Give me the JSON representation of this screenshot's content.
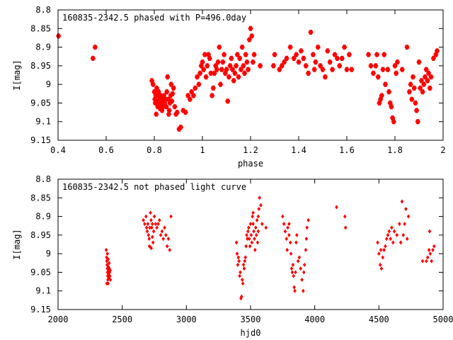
{
  "colors": {
    "marker": "#ff0000",
    "axis": "#000000",
    "background": "#ffffff"
  },
  "chart_data": [
    {
      "type": "scatter",
      "title": "160835-2342.5 phased with P=496.0day",
      "xlabel": "phase",
      "ylabel": "I[mag]",
      "xlim": [
        0.4,
        2.0
      ],
      "ylim": [
        8.8,
        9.15
      ],
      "y_inverted": true,
      "grid": false,
      "legend": "none",
      "marker": "filled-diamond",
      "x_ticks": [
        0.4,
        0.6,
        0.8,
        1.0,
        1.2,
        1.4,
        1.6,
        1.8,
        2.0
      ],
      "x_tick_labels": [
        "0.4",
        "0.6",
        "0.8",
        "1",
        "1.2",
        "1.4",
        "1.6",
        "1.8",
        "2"
      ],
      "y_ticks": [
        8.8,
        8.85,
        8.9,
        8.95,
        9.0,
        9.05,
        9.1,
        9.15
      ],
      "y_tick_labels": [
        "8.8",
        "8.85",
        "8.9",
        "8.95",
        "9",
        "9.05",
        "9.1",
        "9.15"
      ],
      "points": [
        [
          0.402,
          8.87
        ],
        [
          0.545,
          8.93
        ],
        [
          0.554,
          8.9
        ],
        [
          0.79,
          8.99
        ],
        [
          0.795,
          9.0
        ],
        [
          0.8,
          9.02
        ],
        [
          0.802,
          9.04
        ],
        [
          0.804,
          9.05
        ],
        [
          0.806,
          9.03
        ],
        [
          0.808,
          9.08
        ],
        [
          0.81,
          9.01
        ],
        [
          0.812,
          9.045
        ],
        [
          0.814,
          9.06
        ],
        [
          0.816,
          9.03
        ],
        [
          0.818,
          9.02
        ],
        [
          0.82,
          9.05
        ],
        [
          0.822,
          9.04
        ],
        [
          0.824,
          9.065
        ],
        [
          0.826,
          9.03
        ],
        [
          0.828,
          9.055
        ],
        [
          0.83,
          9.045
        ],
        [
          0.832,
          9.07
        ],
        [
          0.834,
          9.04
        ],
        [
          0.836,
          9.06
        ],
        [
          0.84,
          9.03
        ],
        [
          0.843,
          9.05
        ],
        [
          0.846,
          9.04
        ],
        [
          0.85,
          9.06
        ],
        [
          0.852,
          9.02
        ],
        [
          0.855,
          8.98
        ],
        [
          0.858,
          9.04
        ],
        [
          0.86,
          9.08
        ],
        [
          0.862,
          9.07
        ],
        [
          0.865,
          9.05
        ],
        [
          0.868,
          9.03
        ],
        [
          0.87,
          9.0
        ],
        [
          0.873,
          9.045
        ],
        [
          0.876,
          9.025
        ],
        [
          0.88,
          9.01
        ],
        [
          0.885,
          9.06
        ],
        [
          0.89,
          9.08
        ],
        [
          0.895,
          9.075
        ],
        [
          0.903,
          9.12
        ],
        [
          0.91,
          9.115
        ],
        [
          0.92,
          9.07
        ],
        [
          0.93,
          9.075
        ],
        [
          0.94,
          9.03
        ],
        [
          0.948,
          9.04
        ],
        [
          0.955,
          9.02
        ],
        [
          0.963,
          9.03
        ],
        [
          0.97,
          9.01
        ],
        [
          0.978,
          8.98
        ],
        [
          0.985,
          9.0
        ],
        [
          0.99,
          8.97
        ],
        [
          0.995,
          8.95
        ],
        [
          1.0,
          8.94
        ],
        [
          1.005,
          8.96
        ],
        [
          1.01,
          8.92
        ],
        [
          1.015,
          8.98
        ],
        [
          1.02,
          8.95
        ],
        [
          1.025,
          8.92
        ],
        [
          1.03,
          8.93
        ],
        [
          1.035,
          8.97
        ],
        [
          1.04,
          9.03
        ],
        [
          1.045,
          9.01
        ],
        [
          1.05,
          8.97
        ],
        [
          1.055,
          8.95
        ],
        [
          1.06,
          8.96
        ],
        [
          1.065,
          8.94
        ],
        [
          1.07,
          8.9
        ],
        [
          1.075,
          9.0
        ],
        [
          1.08,
          8.96
        ],
        [
          1.085,
          8.94
        ],
        [
          1.09,
          8.92
        ],
        [
          1.095,
          8.97
        ],
        [
          1.1,
          8.96
        ],
        [
          1.105,
          9.045
        ],
        [
          1.11,
          8.98
        ],
        [
          1.115,
          8.95
        ],
        [
          1.12,
          8.93
        ],
        [
          1.125,
          8.96
        ],
        [
          1.13,
          8.99
        ],
        [
          1.135,
          8.97
        ],
        [
          1.14,
          8.95
        ],
        [
          1.145,
          8.92
        ],
        [
          1.15,
          8.98
        ],
        [
          1.155,
          8.93
        ],
        [
          1.16,
          8.96
        ],
        [
          1.165,
          8.9
        ],
        [
          1.17,
          8.95
        ],
        [
          1.175,
          8.97
        ],
        [
          1.18,
          8.92
        ],
        [
          1.185,
          8.94
        ],
        [
          1.19,
          8.96
        ],
        [
          1.195,
          8.88
        ],
        [
          1.2,
          8.85
        ],
        [
          1.205,
          8.87
        ],
        [
          1.21,
          8.94
        ],
        [
          1.215,
          8.92
        ],
        [
          1.24,
          8.95
        ],
        [
          1.295,
          8.95
        ],
        [
          1.3,
          8.92
        ],
        [
          1.32,
          8.96
        ],
        [
          1.33,
          8.95
        ],
        [
          1.34,
          8.94
        ],
        [
          1.35,
          8.93
        ],
        [
          1.365,
          8.9
        ],
        [
          1.38,
          8.93
        ],
        [
          1.39,
          8.92
        ],
        [
          1.4,
          8.94
        ],
        [
          1.41,
          8.91
        ],
        [
          1.42,
          8.93
        ],
        [
          1.43,
          8.95
        ],
        [
          1.44,
          8.97
        ],
        [
          1.45,
          8.86
        ],
        [
          1.46,
          8.92
        ],
        [
          1.465,
          8.96
        ],
        [
          1.47,
          8.94
        ],
        [
          1.48,
          8.9
        ],
        [
          1.49,
          8.95
        ],
        [
          1.5,
          8.96
        ],
        [
          1.51,
          8.98
        ],
        [
          1.52,
          8.91
        ],
        [
          1.53,
          8.94
        ],
        [
          1.54,
          8.96
        ],
        [
          1.55,
          8.92
        ],
        [
          1.56,
          8.93
        ],
        [
          1.57,
          8.95
        ],
        [
          1.58,
          8.93
        ],
        [
          1.59,
          8.9
        ],
        [
          1.6,
          8.96
        ],
        [
          1.61,
          8.92
        ],
        [
          1.62,
          8.96
        ],
        [
          1.69,
          8.92
        ],
        [
          1.7,
          8.95
        ],
        [
          1.71,
          8.97
        ],
        [
          1.72,
          8.95
        ],
        [
          1.725,
          8.92
        ],
        [
          1.73,
          8.98
        ],
        [
          1.735,
          9.05
        ],
        [
          1.74,
          9.04
        ],
        [
          1.745,
          9.03
        ],
        [
          1.75,
          8.96
        ],
        [
          1.755,
          8.92
        ],
        [
          1.76,
          9.0
        ],
        [
          1.77,
          8.96
        ],
        [
          1.775,
          9.02
        ],
        [
          1.78,
          9.05
        ],
        [
          1.785,
          9.06
        ],
        [
          1.79,
          9.09
        ],
        [
          1.795,
          9.1
        ],
        [
          1.8,
          8.95
        ],
        [
          1.805,
          8.97
        ],
        [
          1.81,
          8.94
        ],
        [
          1.83,
          8.96
        ],
        [
          1.85,
          8.9
        ],
        [
          1.86,
          9.02
        ],
        [
          1.865,
          9.0
        ],
        [
          1.87,
          9.04
        ],
        [
          1.875,
          8.98
        ],
        [
          1.88,
          9.01
        ],
        [
          1.885,
          9.05
        ],
        [
          1.89,
          9.07
        ],
        [
          1.895,
          9.1
        ],
        [
          1.9,
          8.94
        ],
        [
          1.905,
          9.01
        ],
        [
          1.91,
          8.99
        ],
        [
          1.915,
          9.02
        ],
        [
          1.92,
          9.0
        ],
        [
          1.925,
          8.98
        ],
        [
          1.93,
          8.96
        ],
        [
          1.935,
          8.99
        ],
        [
          1.94,
          8.97
        ],
        [
          1.945,
          9.01
        ],
        [
          1.95,
          8.98
        ],
        [
          1.96,
          8.93
        ],
        [
          1.97,
          8.92
        ],
        [
          1.975,
          8.91
        ]
      ]
    },
    {
      "type": "scatter",
      "title": "160835-2342.5 not phased light curve",
      "xlabel": "hjd0",
      "ylabel": "I[mag]",
      "xlim": [
        2000,
        5000
      ],
      "ylim": [
        8.8,
        9.15
      ],
      "y_inverted": true,
      "grid": false,
      "legend": "none",
      "marker": "small-diamond",
      "x_ticks": [
        2000,
        2500,
        3000,
        3500,
        4000,
        4500,
        5000
      ],
      "x_tick_labels": [
        "2000",
        "2500",
        "3000",
        "3500",
        "4000",
        "4500",
        "5000"
      ],
      "y_ticks": [
        8.8,
        8.85,
        8.9,
        8.95,
        9.0,
        9.05,
        9.1,
        9.15
      ],
      "y_tick_labels": [
        "8.8",
        "8.85",
        "8.9",
        "8.95",
        "9",
        "9.05",
        "9.1",
        "9.15"
      ],
      "points": [
        [
          2375,
          8.99
        ],
        [
          2378,
          9.01
        ],
        [
          2380,
          9.02
        ],
        [
          2382,
          9.03
        ],
        [
          2384,
          9.04
        ],
        [
          2385,
          9.05
        ],
        [
          2386,
          9.06
        ],
        [
          2388,
          9.07
        ],
        [
          2390,
          9.08
        ],
        [
          2392,
          9.035
        ],
        [
          2394,
          9.045
        ],
        [
          2395,
          9.055
        ],
        [
          2396,
          9.065
        ],
        [
          2398,
          9.025
        ],
        [
          2400,
          9.04
        ],
        [
          2402,
          9.05
        ],
        [
          2404,
          9.06
        ],
        [
          2406,
          9.045
        ],
        [
          2408,
          9.07
        ],
        [
          2380,
          9.08
        ],
        [
          2390,
          9.015
        ],
        [
          2385,
          9.0
        ],
        [
          2665,
          8.91
        ],
        [
          2675,
          8.92
        ],
        [
          2685,
          8.9
        ],
        [
          2690,
          8.93
        ],
        [
          2695,
          8.94
        ],
        [
          2700,
          8.92
        ],
        [
          2705,
          8.95
        ],
        [
          2710,
          8.96
        ],
        [
          2715,
          8.93
        ],
        [
          2720,
          8.89
        ],
        [
          2725,
          8.91
        ],
        [
          2730,
          8.93
        ],
        [
          2735,
          8.92
        ],
        [
          2740,
          8.97
        ],
        [
          2745,
          8.94
        ],
        [
          2750,
          8.9
        ],
        [
          2760,
          8.92
        ],
        [
          2770,
          8.93
        ],
        [
          2780,
          8.92
        ],
        [
          2790,
          8.91
        ],
        [
          2800,
          8.95
        ],
        [
          2810,
          8.94
        ],
        [
          2820,
          8.96
        ],
        [
          2830,
          8.93
        ],
        [
          2840,
          8.95
        ],
        [
          2850,
          8.98
        ],
        [
          2860,
          8.96
        ],
        [
          2870,
          8.99
        ],
        [
          2880,
          8.9
        ],
        [
          2712,
          8.98
        ],
        [
          2726,
          8.985
        ],
        [
          2735,
          8.955
        ],
        [
          3390,
          8.97
        ],
        [
          3395,
          9.0
        ],
        [
          3400,
          9.03
        ],
        [
          3405,
          9.01
        ],
        [
          3410,
          9.02
        ],
        [
          3415,
          9.06
        ],
        [
          3420,
          9.05
        ],
        [
          3425,
          9.12
        ],
        [
          3430,
          9.115
        ],
        [
          3435,
          9.07
        ],
        [
          3440,
          9.08
        ],
        [
          3445,
          9.03
        ],
        [
          3450,
          9.04
        ],
        [
          3455,
          9.02
        ],
        [
          3460,
          9.01
        ],
        [
          3465,
          8.98
        ],
        [
          3470,
          8.95
        ],
        [
          3475,
          8.96
        ],
        [
          3480,
          8.94
        ],
        [
          3485,
          8.93
        ],
        [
          3490,
          8.96
        ],
        [
          3495,
          8.98
        ],
        [
          3500,
          8.92
        ],
        [
          3505,
          8.95
        ],
        [
          3510,
          8.97
        ],
        [
          3515,
          8.9
        ],
        [
          3520,
          8.92
        ],
        [
          3525,
          8.94
        ],
        [
          3530,
          8.96
        ],
        [
          3535,
          8.99
        ],
        [
          3540,
          8.93
        ],
        [
          3545,
          8.95
        ],
        [
          3550,
          8.91
        ],
        [
          3555,
          8.97
        ],
        [
          3560,
          8.94
        ],
        [
          3565,
          8.88
        ],
        [
          3570,
          8.85
        ],
        [
          3580,
          8.87
        ],
        [
          3590,
          8.92
        ],
        [
          3620,
          8.93
        ],
        [
          3520,
          8.89
        ],
        [
          3560,
          8.9
        ],
        [
          3750,
          8.9
        ],
        [
          3760,
          8.92
        ],
        [
          3770,
          8.94
        ],
        [
          3780,
          8.96
        ],
        [
          3785,
          8.99
        ],
        [
          3790,
          8.93
        ],
        [
          3800,
          8.95
        ],
        [
          3810,
          8.97
        ],
        [
          3815,
          9.0
        ],
        [
          3820,
          9.04
        ],
        [
          3825,
          9.05
        ],
        [
          3830,
          9.03
        ],
        [
          3835,
          9.06
        ],
        [
          3840,
          9.09
        ],
        [
          3845,
          9.1
        ],
        [
          3850,
          9.05
        ],
        [
          3855,
          8.97
        ],
        [
          3860,
          8.95
        ],
        [
          3870,
          9.02
        ],
        [
          3880,
          9.01
        ],
        [
          3890,
          9.04
        ],
        [
          3900,
          9.07
        ],
        [
          3910,
          9.1
        ],
        [
          3915,
          9.05
        ],
        [
          3920,
          9.03
        ],
        [
          3930,
          8.99
        ],
        [
          3935,
          8.96
        ],
        [
          3940,
          8.93
        ],
        [
          3950,
          8.91
        ],
        [
          3800,
          8.92
        ],
        [
          4170,
          8.875
        ],
        [
          4235,
          8.9
        ],
        [
          4240,
          8.93
        ],
        [
          4490,
          8.97
        ],
        [
          4500,
          9.0
        ],
        [
          4510,
          9.03
        ],
        [
          4515,
          8.99
        ],
        [
          4520,
          9.04
        ],
        [
          4530,
          9.01
        ],
        [
          4540,
          8.99
        ],
        [
          4550,
          8.98
        ],
        [
          4560,
          8.96
        ],
        [
          4570,
          8.95
        ],
        [
          4580,
          8.94
        ],
        [
          4590,
          8.96
        ],
        [
          4600,
          8.93
        ],
        [
          4610,
          8.97
        ],
        [
          4620,
          8.94
        ],
        [
          4640,
          8.95
        ],
        [
          4660,
          8.92
        ],
        [
          4670,
          8.97
        ],
        [
          4680,
          8.86
        ],
        [
          4690,
          8.95
        ],
        [
          4700,
          8.92
        ],
        [
          4710,
          8.88
        ],
        [
          4720,
          8.96
        ],
        [
          4730,
          8.9
        ],
        [
          4840,
          9.02
        ],
        [
          4870,
          9.02
        ],
        [
          4880,
          9.01
        ],
        [
          4890,
          8.99
        ],
        [
          4895,
          8.94
        ],
        [
          4900,
          9.0
        ],
        [
          4910,
          9.02
        ],
        [
          4920,
          8.99
        ],
        [
          4930,
          8.98
        ]
      ]
    }
  ]
}
